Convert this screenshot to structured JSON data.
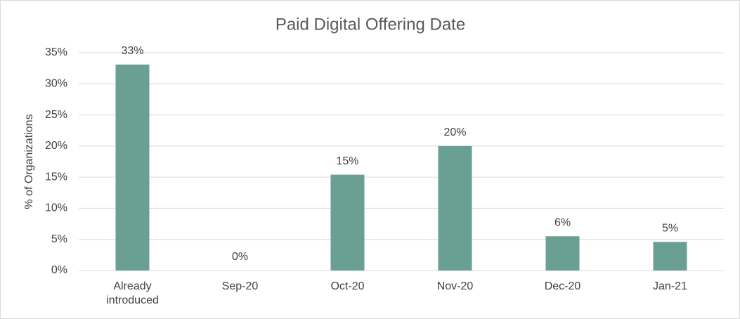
{
  "chart_data": {
    "type": "bar",
    "title": "Paid Digital Offering Date",
    "y_label": "% of Organizations",
    "categories": [
      "Already introduced",
      "Sep-20",
      "Oct-20",
      "Nov-20",
      "Dec-20",
      "Jan-21"
    ],
    "values": [
      33.1,
      0,
      15.4,
      20.0,
      5.5,
      4.6
    ],
    "value_labels": [
      "33%",
      "0%",
      "15%",
      "20%",
      "6%",
      "5%"
    ],
    "color": "#6a9f94",
    "ylim": [
      0,
      35
    ],
    "yticks": [
      {
        "value": 0,
        "label": "0%"
      },
      {
        "value": 5,
        "label": "5%"
      },
      {
        "value": 10,
        "label": "10%"
      },
      {
        "value": 15,
        "label": "15%"
      },
      {
        "value": 20,
        "label": "20%"
      },
      {
        "value": 25,
        "label": "25%"
      },
      {
        "value": 30,
        "label": "30%"
      },
      {
        "value": 35,
        "label": "35%"
      }
    ],
    "grid": true
  }
}
